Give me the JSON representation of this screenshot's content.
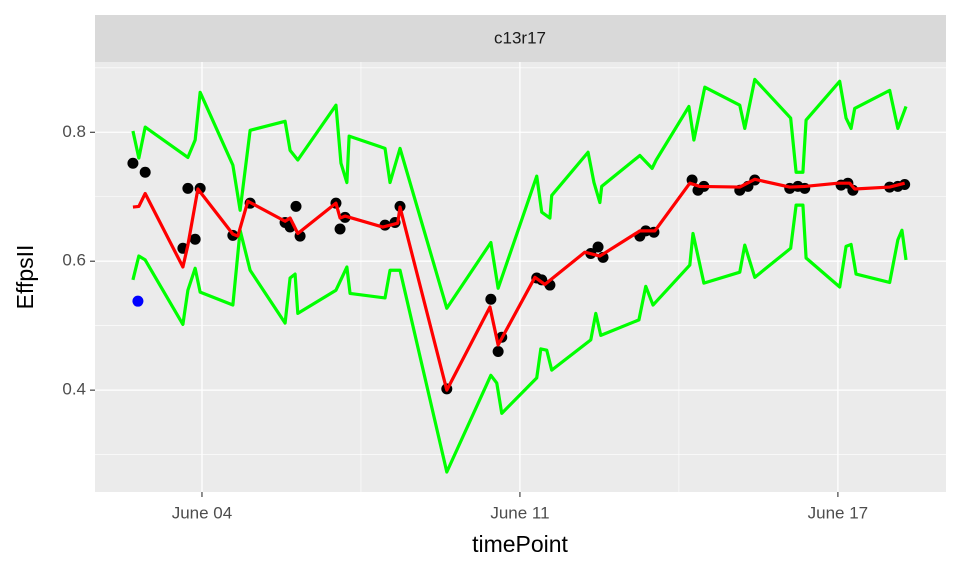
{
  "chart_data": {
    "type": "line",
    "strip_title": "c13r17",
    "x_label": "timePoint",
    "y_label": "EffpsII",
    "xlim": [
      1.645,
      20.38
    ],
    "ylim": [
      0.242,
      0.909
    ],
    "xticks": [
      {
        "value": 4,
        "label": "June 04"
      },
      {
        "value": 11,
        "label": "June 11"
      },
      {
        "value": 18,
        "label": "June 17"
      }
    ],
    "xminor": [
      7.5,
      14.5
    ],
    "yticks": [
      0.4,
      0.6,
      0.8
    ],
    "yminor": [
      0.3,
      0.5,
      0.7,
      0.9
    ],
    "grid": true,
    "series": [
      {
        "kind": "line",
        "color": "#00ff00",
        "x": [
          2.48,
          2.61,
          2.75,
          3.69,
          3.85,
          3.96,
          4.68,
          4.84,
          5.06,
          5.83,
          5.94,
          6.11,
          6.95,
          7.06,
          7.19,
          7.24,
          8.03,
          8.14,
          8.36,
          9.39,
          10.36,
          10.52,
          11.37,
          11.48,
          11.66,
          11.7,
          12.5,
          12.63,
          12.76,
          12.8,
          13.64,
          13.91,
          14.0,
          14.72,
          14.83,
          15.07,
          15.84,
          15.95,
          16.17,
          16.96,
          17.08,
          17.23,
          17.3,
          18.04,
          18.18,
          18.29,
          18.37,
          19.14,
          19.32,
          19.5
        ],
        "values": [
          0.802,
          0.76,
          0.808,
          0.761,
          0.788,
          0.862,
          0.749,
          0.679,
          0.803,
          0.817,
          0.772,
          0.757,
          0.842,
          0.752,
          0.722,
          0.794,
          0.775,
          0.722,
          0.775,
          0.527,
          0.629,
          0.558,
          0.732,
          0.676,
          0.667,
          0.702,
          0.769,
          0.722,
          0.691,
          0.716,
          0.764,
          0.744,
          0.757,
          0.84,
          0.788,
          0.87,
          0.842,
          0.806,
          0.882,
          0.822,
          0.738,
          0.738,
          0.819,
          0.879,
          0.822,
          0.806,
          0.837,
          0.865,
          0.806,
          0.84
        ]
      },
      {
        "kind": "line",
        "color": "#00ff00",
        "x": [
          2.48,
          2.61,
          2.75,
          3.58,
          3.69,
          3.85,
          3.96,
          4.68,
          4.84,
          5.06,
          5.83,
          5.94,
          6.05,
          6.11,
          6.95,
          7.19,
          7.26,
          8.03,
          8.14,
          8.36,
          9.39,
          10.36,
          10.49,
          10.6,
          11.37,
          11.46,
          11.59,
          11.7,
          12.56,
          12.67,
          12.78,
          13.62,
          13.77,
          13.93,
          14.74,
          14.81,
          15.05,
          15.84,
          15.95,
          16.17,
          16.96,
          17.08,
          17.23,
          17.3,
          18.04,
          18.18,
          18.29,
          18.4,
          19.14,
          19.32,
          19.41,
          19.5
        ],
        "values": [
          0.571,
          0.608,
          0.602,
          0.502,
          0.555,
          0.589,
          0.552,
          0.532,
          0.648,
          0.586,
          0.504,
          0.574,
          0.58,
          0.519,
          0.555,
          0.591,
          0.55,
          0.543,
          0.586,
          0.586,
          0.273,
          0.423,
          0.411,
          0.364,
          0.419,
          0.464,
          0.462,
          0.431,
          0.478,
          0.519,
          0.485,
          0.509,
          0.561,
          0.532,
          0.594,
          0.643,
          0.566,
          0.583,
          0.625,
          0.575,
          0.62,
          0.687,
          0.687,
          0.605,
          0.56,
          0.623,
          0.626,
          0.58,
          0.567,
          0.633,
          0.648,
          0.602
        ]
      },
      {
        "kind": "points",
        "color": "#000000",
        "x": [
          2.48,
          2.75,
          3.58,
          3.69,
          3.85,
          3.96,
          4.68,
          5.06,
          5.83,
          5.94,
          6.07,
          6.16,
          6.95,
          7.04,
          7.15,
          8.03,
          8.25,
          8.36,
          9.39,
          10.36,
          10.52,
          10.6,
          11.37,
          11.48,
          11.66,
          12.56,
          12.72,
          12.83,
          13.64,
          13.77,
          13.95,
          14.79,
          14.92,
          15.05,
          15.84,
          16.02,
          16.17,
          16.94,
          17.12,
          17.27,
          18.07,
          18.22,
          18.33,
          19.14,
          19.32,
          19.47
        ],
        "values": [
          0.752,
          0.738,
          0.62,
          0.713,
          0.634,
          0.713,
          0.64,
          0.69,
          0.66,
          0.653,
          0.685,
          0.639,
          0.69,
          0.65,
          0.668,
          0.656,
          0.66,
          0.685,
          0.402,
          0.541,
          0.46,
          0.482,
          0.574,
          0.571,
          0.563,
          0.612,
          0.622,
          0.606,
          0.639,
          0.647,
          0.645,
          0.726,
          0.71,
          0.716,
          0.71,
          0.716,
          0.726,
          0.713,
          0.716,
          0.713,
          0.718,
          0.721,
          0.71,
          0.715,
          0.716,
          0.719
        ]
      },
      {
        "kind": "line",
        "color": "#ff0000",
        "x": [
          2.48,
          2.61,
          2.75,
          3.58,
          3.69,
          3.91,
          4.68,
          4.79,
          5.01,
          5.83,
          5.94,
          6.11,
          6.95,
          7.04,
          7.15,
          7.98,
          8.31,
          8.36,
          9.39,
          10.34,
          10.52,
          11.33,
          11.55,
          12.43,
          12.76,
          13.64,
          13.97,
          14.74,
          14.96,
          15.84,
          16.17,
          16.94,
          17.27,
          18.0,
          18.26,
          18.37,
          19.14,
          19.47
        ],
        "values": [
          0.684,
          0.685,
          0.705,
          0.591,
          0.625,
          0.712,
          0.642,
          0.639,
          0.693,
          0.662,
          0.667,
          0.643,
          0.69,
          0.667,
          0.67,
          0.653,
          0.659,
          0.684,
          0.4,
          0.529,
          0.47,
          0.575,
          0.564,
          0.614,
          0.608,
          0.647,
          0.647,
          0.721,
          0.716,
          0.715,
          0.727,
          0.715,
          0.716,
          0.721,
          0.721,
          0.712,
          0.715,
          0.721
        ]
      },
      {
        "kind": "points",
        "color": "#0000ff",
        "x": [
          2.59
        ],
        "values": [
          0.538
        ]
      }
    ]
  }
}
